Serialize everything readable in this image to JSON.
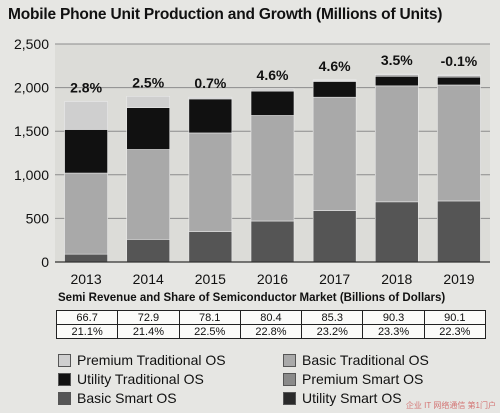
{
  "chart_data": {
    "type": "bar",
    "stacked": true,
    "title": "Mobile Phone Unit Production and Growth (Millions of Units)",
    "categories": [
      "2013",
      "2014",
      "2015",
      "2016",
      "2017",
      "2018",
      "2019"
    ],
    "ylim": [
      0,
      2500
    ],
    "yticks": [
      "0",
      "500",
      "1,000",
      "1,500",
      "2,000",
      "2,500"
    ],
    "yticks_values": [
      0,
      500,
      1000,
      1500,
      2000,
      2500
    ],
    "grid": true,
    "growth_labels": [
      "2.8%",
      "2.5%",
      "0.7%",
      "4.6%",
      "4.6%",
      "3.5%",
      "-0.1%"
    ],
    "series": [
      {
        "name": "Basic Smart OS",
        "color": "#555555",
        "values": [
          90,
          260,
          350,
          470,
          590,
          690,
          700
        ]
      },
      {
        "name": "Basic Traditional OS",
        "color": "#a9a9a9",
        "values": [
          930,
          1030,
          1130,
          1210,
          1300,
          1330,
          1330
        ]
      },
      {
        "name": "Utility Traditional OS",
        "color": "#111111",
        "values": [
          500,
          480,
          390,
          280,
          180,
          110,
          90
        ]
      },
      {
        "name": "Premium Smart OS",
        "color": "#8a8a8a",
        "values": [
          0,
          0,
          0,
          0,
          10,
          15,
          15
        ]
      },
      {
        "name": "Utility Smart OS",
        "color": "#2a2a2a",
        "values": [
          0,
          0,
          0,
          0,
          0,
          0,
          0
        ]
      },
      {
        "name": "Premium Traditional OS",
        "color": "#cfcfcf",
        "values": [
          320,
          130,
          20,
          25,
          10,
          10,
          10
        ]
      }
    ]
  },
  "revenue": {
    "title": "Semi Revenue and Share of Semiconductor Market (Billions of Dollars)",
    "values": [
      "66.7",
      "72.9",
      "78.1",
      "80.4",
      "85.3",
      "90.3",
      "90.1"
    ],
    "shares": [
      "21.1%",
      "21.4%",
      "22.5%",
      "22.8%",
      "23.2%",
      "23.3%",
      "22.3%"
    ]
  },
  "legend": [
    {
      "label": "Premium Traditional OS",
      "color": "#cfcfcf"
    },
    {
      "label": "Basic Traditional OS",
      "color": "#a9a9a9"
    },
    {
      "label": "Utility Traditional OS",
      "color": "#111111"
    },
    {
      "label": "Premium Smart OS",
      "color": "#8a8a8a"
    },
    {
      "label": "Basic Smart OS",
      "color": "#555555"
    },
    {
      "label": "Utility Smart OS",
      "color": "#2a2a2a"
    }
  ],
  "watermark": "企业 IT 网络通信 第1门户"
}
